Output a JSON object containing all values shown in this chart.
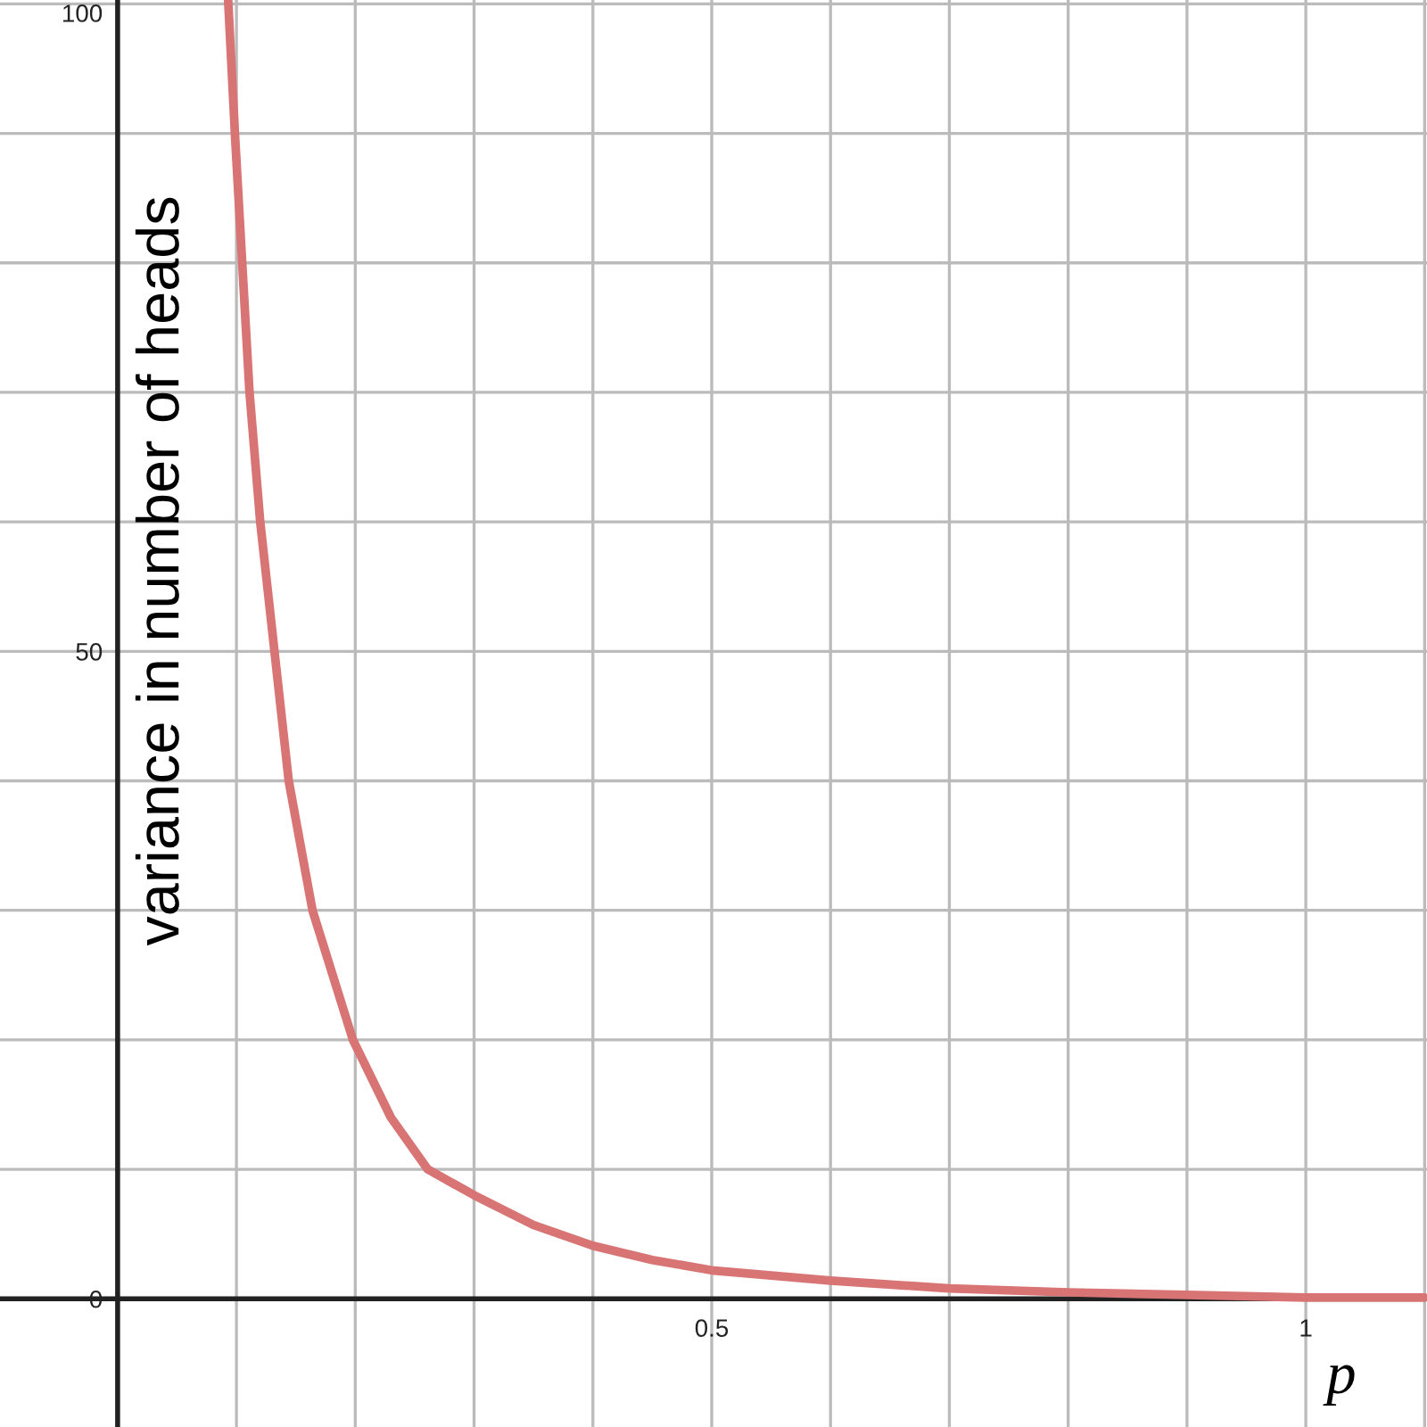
{
  "chart_data": {
    "type": "line",
    "xlabel": "p",
    "ylabel": "variance in number of heads",
    "xlim": [
      -0.099,
      1.102
    ],
    "ylim": [
      -9.9,
      100.3
    ],
    "xticks": [
      {
        "value": 0,
        "label": null
      },
      {
        "value": 0.1,
        "label": null
      },
      {
        "value": 0.2,
        "label": null
      },
      {
        "value": 0.3,
        "label": null
      },
      {
        "value": 0.4,
        "label": null
      },
      0.5,
      {
        "value": 0.6,
        "label": null
      },
      {
        "value": 0.7,
        "label": null
      },
      {
        "value": 0.8,
        "label": null
      },
      {
        "value": 0.9,
        "label": null
      },
      1,
      {
        "value": 1.1,
        "label": null
      }
    ],
    "yticks": [
      0,
      {
        "value": 10,
        "label": null
      },
      {
        "value": 20,
        "label": null
      },
      {
        "value": 30,
        "label": null
      },
      {
        "value": 40,
        "label": null
      },
      50,
      {
        "value": 60,
        "label": null
      },
      {
        "value": 70,
        "label": null
      },
      {
        "value": 80,
        "label": null
      },
      {
        "value": 90,
        "label": null
      },
      100
    ],
    "grid": true,
    "legend": false,
    "marker": "none",
    "line_style": "solid",
    "series": [
      {
        "color": "#d87474",
        "x": [
          0.093,
          0.099,
          0.111,
          0.12,
          0.132,
          0.144,
          0.164,
          0.198,
          0.23,
          0.261,
          0.3,
          0.35,
          0.4,
          0.45,
          0.5,
          0.6,
          0.7,
          0.8,
          0.9,
          1.0,
          1.1
        ],
        "values": [
          100.3,
          89.5,
          70,
          60,
          50,
          40,
          30,
          20,
          14,
          10,
          8.0,
          5.7,
          4.1,
          3.0,
          2.2,
          1.4,
          0.8,
          0.5,
          0.3,
          0.1,
          0.1
        ]
      }
    ]
  }
}
